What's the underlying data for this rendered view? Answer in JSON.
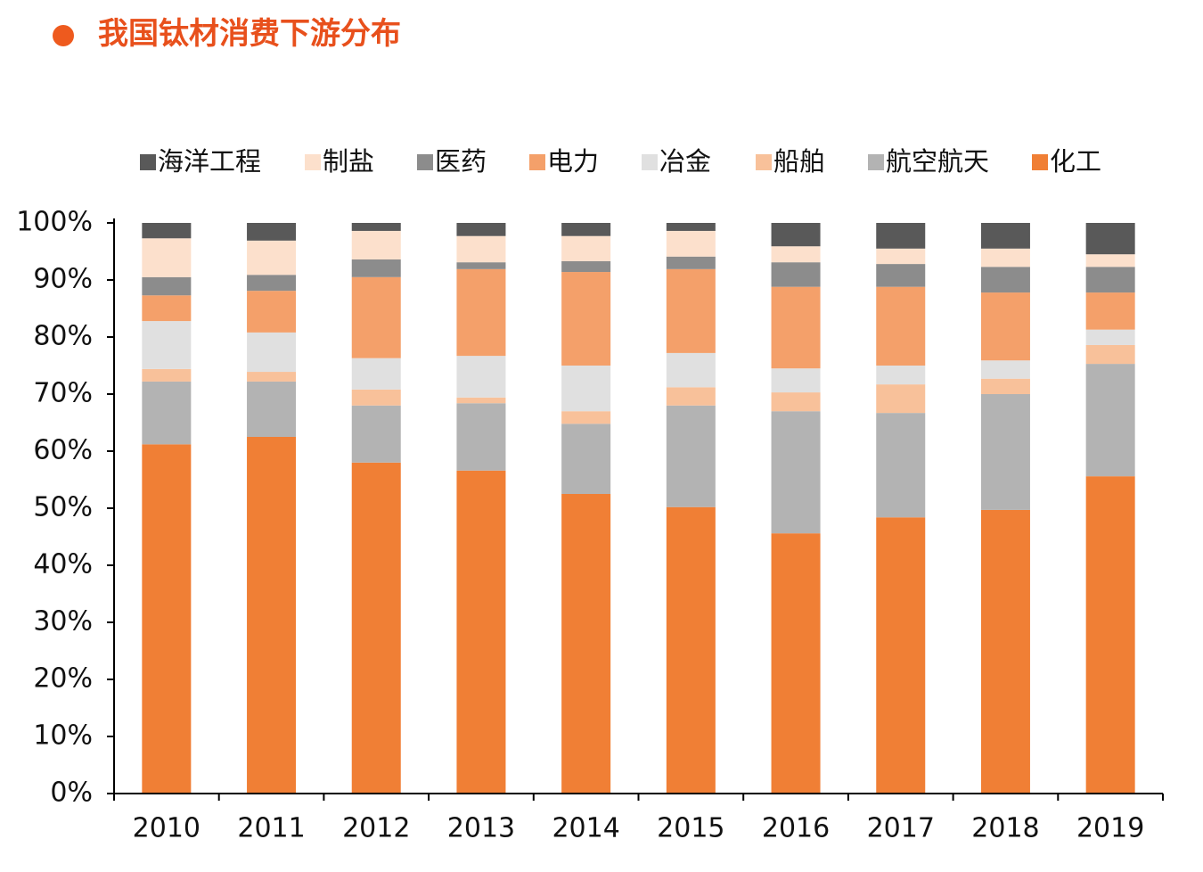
{
  "chart_data": {
    "type": "stacked_bar",
    "title": "我国钛材消费下游分布",
    "categories": [
      "2010",
      "2011",
      "2012",
      "2013",
      "2014",
      "2015",
      "2016",
      "2017",
      "2018",
      "2019"
    ],
    "series": [
      {
        "name": "海洋工程",
        "color": "#595959",
        "values": [
          2.7,
          3.1,
          1.4,
          2.3,
          2.3,
          1.4,
          4.1,
          4.5,
          4.5,
          5.5
        ]
      },
      {
        "name": "制盐",
        "color": "#fce0cc",
        "values": [
          6.8,
          6.0,
          5.0,
          4.6,
          4.4,
          4.5,
          2.8,
          2.7,
          3.2,
          2.2
        ]
      },
      {
        "name": "医药",
        "color": "#8c8c8c",
        "values": [
          3.2,
          2.8,
          3.1,
          1.2,
          1.9,
          2.2,
          4.3,
          4.0,
          4.5,
          4.5
        ]
      },
      {
        "name": "电力",
        "color": "#f4a06a",
        "values": [
          4.5,
          7.3,
          14.2,
          15.2,
          16.4,
          14.7,
          14.3,
          13.8,
          11.9,
          6.5
        ]
      },
      {
        "name": "冶金",
        "color": "#e0e0e0",
        "values": [
          8.4,
          6.9,
          5.5,
          7.3,
          8.0,
          6.0,
          4.2,
          3.3,
          3.2,
          2.7
        ]
      },
      {
        "name": "船舶",
        "color": "#f8c19a",
        "values": [
          2.2,
          1.7,
          2.8,
          1.0,
          2.2,
          3.2,
          3.3,
          5.0,
          2.7,
          3.3
        ]
      },
      {
        "name": "航空航天",
        "color": "#b3b3b3",
        "values": [
          11.0,
          9.7,
          10.0,
          11.8,
          12.3,
          17.8,
          21.4,
          18.3,
          20.3,
          19.7
        ]
      },
      {
        "name": "化工",
        "color": "#f07f35",
        "values": [
          61.2,
          62.5,
          58.0,
          56.6,
          52.5,
          50.2,
          45.6,
          48.4,
          49.7,
          55.6
        ]
      }
    ],
    "ylim": [
      0,
      100
    ],
    "yticks": [
      {
        "value": 0,
        "label": "0%"
      },
      {
        "value": 10,
        "label": "10%"
      },
      {
        "value": 20,
        "label": "20%"
      },
      {
        "value": 30,
        "label": "30%"
      },
      {
        "value": 40,
        "label": "40%"
      },
      {
        "value": 50,
        "label": "50%"
      },
      {
        "value": 60,
        "label": "60%"
      },
      {
        "value": 70,
        "label": "70%"
      },
      {
        "value": 80,
        "label": "80%"
      },
      {
        "value": 90,
        "label": "90%"
      },
      {
        "value": 100,
        "label": "100%"
      }
    ],
    "grid": false
  }
}
